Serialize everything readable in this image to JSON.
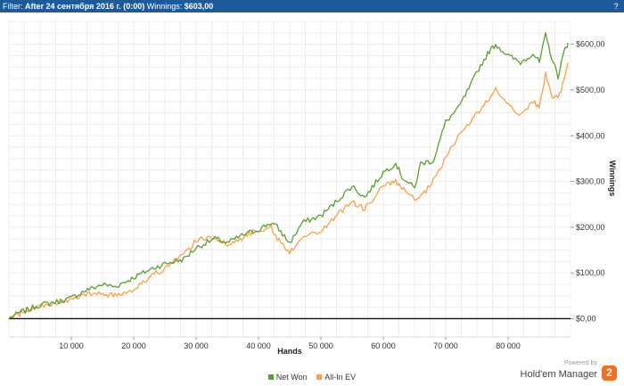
{
  "filter": {
    "prefix": "Filter:",
    "value": "After 24 сентября 2016 г. (0:00)",
    "winnings_label": "Winnings:",
    "winnings_value": "$603,00",
    "help_icon": "help-icon"
  },
  "chart_data": {
    "type": "line",
    "xlabel": "Hands",
    "ylabel": "Winnings",
    "xlim": [
      0,
      90000
    ],
    "ylim": [
      -40,
      650
    ],
    "x_ticks": [
      10000,
      20000,
      30000,
      40000,
      50000,
      60000,
      70000,
      80000
    ],
    "x_tick_labels": [
      "10 000",
      "20 000",
      "30 000",
      "40 000",
      "50 000",
      "60 000",
      "70 000",
      "80 000"
    ],
    "y_ticks": [
      0,
      100,
      200,
      300,
      400,
      500,
      600
    ],
    "y_tick_labels": [
      "$0,00",
      "$100,00",
      "$200,00",
      "$300,00",
      "$400,00",
      "$500,00",
      "$600,00"
    ],
    "grid": true,
    "legend_position": "bottom-center",
    "series": [
      {
        "name": "Net Won",
        "color": "#5a9e2f",
        "x": [
          0,
          2000,
          5000,
          8000,
          10000,
          12000,
          15000,
          17000,
          20000,
          23000,
          25000,
          28000,
          30000,
          33000,
          35000,
          37000,
          40000,
          42000,
          43000,
          45000,
          47000,
          50000,
          52000,
          55000,
          57000,
          60000,
          62000,
          63000,
          65000,
          66000,
          68000,
          70000,
          72000,
          74000,
          75000,
          77000,
          78000,
          80000,
          82000,
          84000,
          85000,
          86000,
          87000,
          88000,
          89000,
          89600
        ],
        "y": [
          0,
          15,
          30,
          38,
          45,
          60,
          75,
          70,
          90,
          110,
          120,
          130,
          155,
          175,
          165,
          180,
          195,
          210,
          200,
          165,
          210,
          225,
          250,
          290,
          265,
          320,
          340,
          310,
          285,
          340,
          345,
          430,
          460,
          510,
          540,
          585,
          600,
          575,
          560,
          580,
          560,
          620,
          570,
          530,
          585,
          603
        ]
      },
      {
        "name": "All-In EV",
        "color": "#f7a14a",
        "x": [
          0,
          2000,
          5000,
          8000,
          10000,
          12000,
          15000,
          17000,
          20000,
          23000,
          25000,
          28000,
          30000,
          33000,
          35000,
          37000,
          40000,
          42000,
          43000,
          45000,
          47000,
          50000,
          52000,
          55000,
          57000,
          60000,
          62000,
          63000,
          65000,
          66000,
          68000,
          70000,
          72000,
          74000,
          75000,
          77000,
          78000,
          80000,
          82000,
          84000,
          85000,
          86000,
          87000,
          88000,
          89000,
          89600
        ],
        "y": [
          0,
          12,
          28,
          35,
          40,
          52,
          55,
          50,
          65,
          95,
          110,
          140,
          170,
          180,
          160,
          175,
          195,
          200,
          175,
          145,
          180,
          190,
          220,
          255,
          240,
          290,
          300,
          285,
          260,
          265,
          300,
          350,
          400,
          430,
          450,
          480,
          500,
          470,
          445,
          475,
          460,
          535,
          490,
          480,
          520,
          560
        ]
      }
    ]
  },
  "brand": {
    "powered_by": "Powered by",
    "name": "Hold'em Manager",
    "logo_text": "2"
  }
}
